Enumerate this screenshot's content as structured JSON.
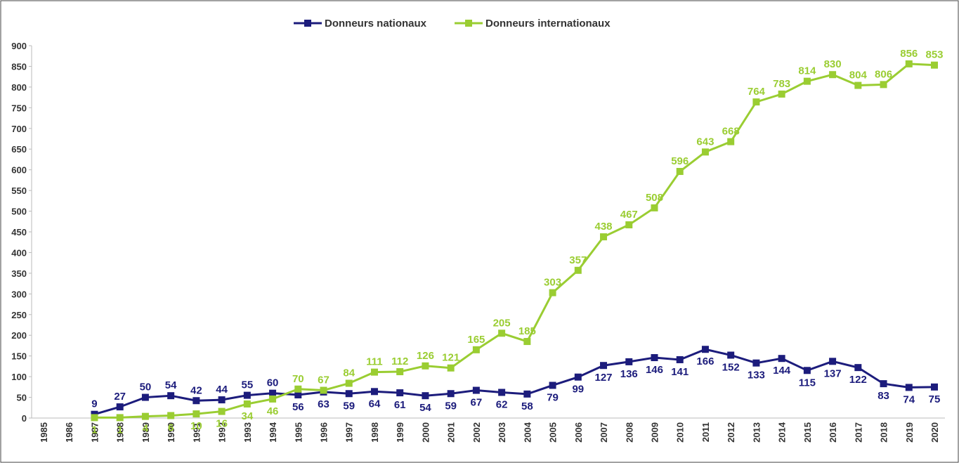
{
  "chart_data": {
    "type": "line",
    "categories": [
      "1985",
      "1986",
      "1987",
      "1988",
      "1989",
      "1990",
      "1991",
      "1992",
      "1993",
      "1994",
      "1995",
      "1996",
      "1997",
      "1998",
      "1999",
      "2000",
      "2001",
      "2002",
      "2003",
      "2004",
      "2005",
      "2006",
      "2007",
      "2008",
      "2009",
      "2010",
      "2011",
      "2012",
      "2013",
      "2014",
      "2015",
      "2016",
      "2017",
      "2018",
      "2019",
      "2020"
    ],
    "series": [
      {
        "name": "Donneurs nationaux",
        "color": "#1c1c7c",
        "values": [
          null,
          null,
          9,
          27,
          50,
          54,
          42,
          44,
          55,
          60,
          56,
          63,
          59,
          64,
          61,
          54,
          59,
          67,
          62,
          58,
          79,
          99,
          127,
          136,
          146,
          141,
          166,
          152,
          133,
          144,
          115,
          137,
          122,
          83,
          74,
          75
        ]
      },
      {
        "name": "Donneurs internationaux",
        "color": "#9acd32",
        "values": [
          null,
          null,
          1,
          1,
          4,
          6,
          10,
          16,
          34,
          46,
          70,
          67,
          84,
          111,
          112,
          126,
          121,
          165,
          205,
          185,
          303,
          357,
          438,
          467,
          508,
          596,
          643,
          668,
          764,
          783,
          814,
          830,
          804,
          806,
          856,
          853
        ]
      }
    ],
    "ylim": [
      0,
      900
    ],
    "yticks": [
      0,
      50,
      100,
      150,
      200,
      250,
      300,
      350,
      400,
      450,
      500,
      550,
      600,
      650,
      700,
      750,
      800,
      850,
      900
    ],
    "legend": "top"
  }
}
